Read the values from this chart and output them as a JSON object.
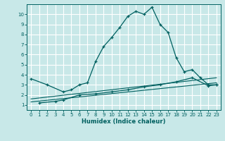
{
  "xlabel": "Humidex (Indice chaleur)",
  "bg_color": "#c8e8e8",
  "grid_color": "#ffffff",
  "line_color": "#006060",
  "xlim": [
    -0.5,
    23.5
  ],
  "ylim": [
    0.5,
    11.0
  ],
  "xticks": [
    0,
    1,
    2,
    3,
    4,
    5,
    6,
    7,
    8,
    9,
    10,
    11,
    12,
    13,
    14,
    15,
    16,
    17,
    18,
    19,
    20,
    21,
    22,
    23
  ],
  "yticks": [
    1,
    2,
    3,
    4,
    5,
    6,
    7,
    8,
    9,
    10
  ],
  "lines": [
    {
      "x": [
        0,
        2,
        4,
        5,
        6,
        7,
        8,
        9,
        10,
        11,
        12,
        13,
        14,
        15,
        16,
        17,
        18,
        19,
        20,
        21,
        22,
        23
      ],
      "y": [
        3.6,
        3.0,
        2.3,
        2.5,
        3.0,
        3.2,
        5.3,
        6.8,
        7.7,
        8.7,
        9.8,
        10.3,
        10.0,
        10.7,
        9.0,
        8.2,
        5.7,
        4.3,
        4.5,
        3.7,
        3.0,
        3.0
      ],
      "marker": true
    },
    {
      "x": [
        1,
        3,
        4,
        6,
        8,
        10,
        12,
        14,
        16,
        18,
        20,
        22,
        23
      ],
      "y": [
        1.2,
        1.35,
        1.5,
        2.0,
        2.1,
        2.3,
        2.5,
        2.8,
        3.0,
        3.3,
        3.7,
        2.9,
        3.0
      ],
      "marker": true
    },
    {
      "x": [
        0,
        23
      ],
      "y": [
        1.3,
        3.2
      ],
      "marker": false
    },
    {
      "x": [
        0,
        23
      ],
      "y": [
        1.6,
        3.7
      ],
      "marker": false
    }
  ]
}
